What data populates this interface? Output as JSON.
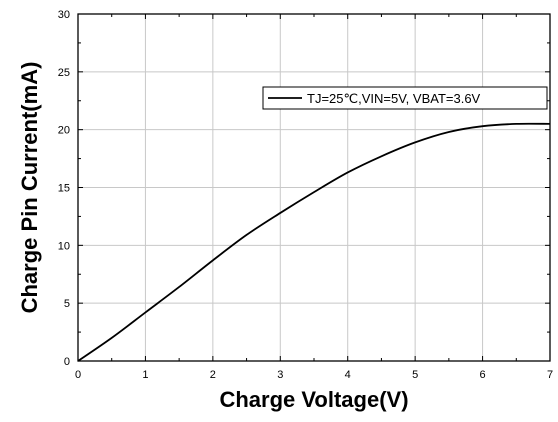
{
  "chart_data": {
    "type": "line",
    "title": "",
    "xlabel": "Charge Voltage(V)",
    "ylabel": "Charge Pin Current(mA)",
    "xlim": [
      0,
      7
    ],
    "ylim": [
      0,
      30
    ],
    "xticks": [
      "0",
      "1",
      "2",
      "3",
      "4",
      "5",
      "6",
      "7"
    ],
    "yticks": [
      "0",
      "5",
      "10",
      "15",
      "20",
      "25",
      "30"
    ],
    "grid": true,
    "legend_position": "top-right",
    "series": [
      {
        "name": "TJ=25℃,VIN=5V, VBAT=3.6V",
        "color": "#000000",
        "x": [
          0,
          0.5,
          1,
          1.5,
          2,
          2.5,
          3,
          3.5,
          4,
          4.5,
          5,
          5.5,
          6,
          6.5,
          7
        ],
        "y": [
          0,
          2,
          4.2,
          6.4,
          8.7,
          10.9,
          12.8,
          14.6,
          16.3,
          17.7,
          18.9,
          19.8,
          20.3,
          20.5,
          20.5
        ]
      }
    ]
  }
}
